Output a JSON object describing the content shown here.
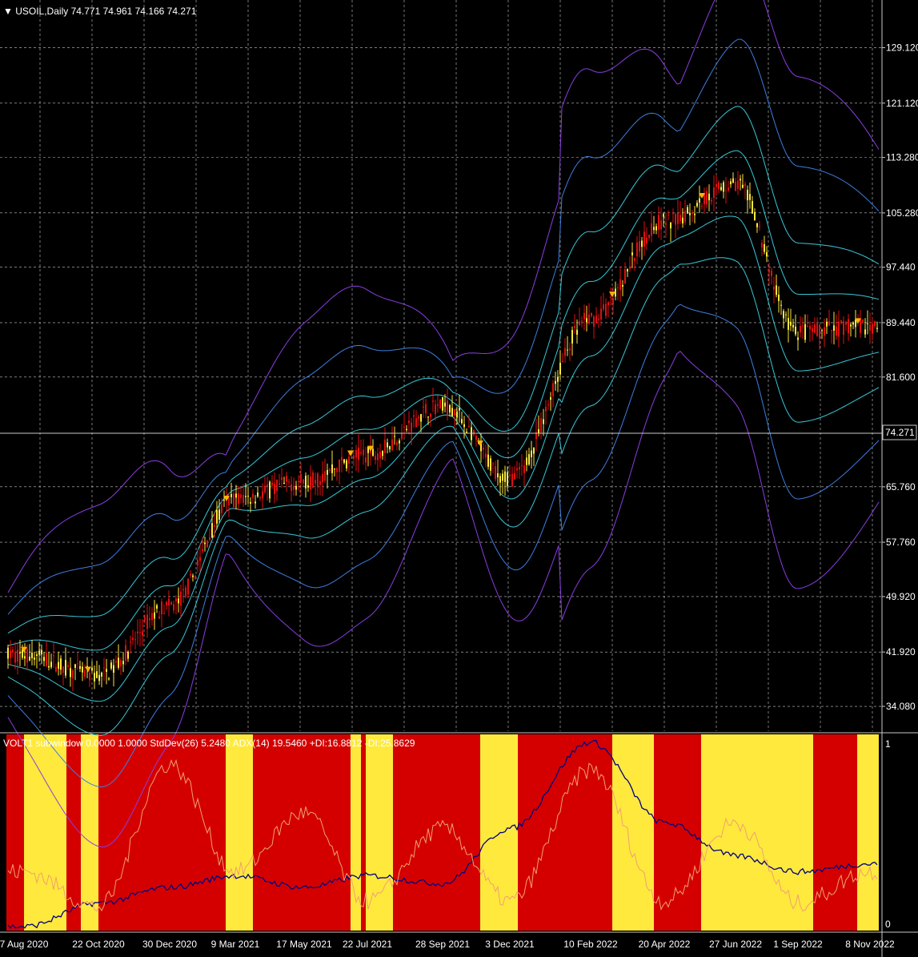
{
  "header": {
    "symbol_line": "▼ USOIL,Daily  74.771 74.961 74.166 74.271",
    "subwindow_line": "VOLT1 subwindow 0.0000 1.0000  StdDev(26) 5.2480  ADX(14) 19.5460 +DI:16.8812 -DI:25.8629"
  },
  "price_axis": {
    "ticks": [
      "129.120",
      "121.120",
      "113.280",
      "105.280",
      "97.440",
      "89.440",
      "81.600",
      "65.760",
      "57.760",
      "49.920",
      "41.920",
      "34.080"
    ],
    "tick_values": [
      129.12,
      121.12,
      113.28,
      105.28,
      97.44,
      89.44,
      81.6,
      65.76,
      57.76,
      49.92,
      41.92,
      34.08
    ],
    "current_price_label": "74.271",
    "current_price": 74.271
  },
  "sub_axis": {
    "top_label": "1",
    "bottom_label": "0"
  },
  "time_axis": {
    "labels": [
      "7 Aug 2020",
      "22 Oct 2020",
      "30 Dec 2020",
      "9 Mar 2021",
      "17 May 2021",
      "22 Jul 2021",
      "28 Sep 2021",
      "3 Dec 2021",
      "10 Feb 2022",
      "20 Apr 2022",
      "27 Jun 2022",
      "1 Sep 2022",
      "8 Nov 2022"
    ]
  },
  "colors": {
    "background": "#000000",
    "grid": "#c8c8c8",
    "up_candles": "#ffe93d",
    "down_candles": "#e01010",
    "band_inner": "#38c8d8",
    "band_mid": "#3e7ee0",
    "band_outer": "#8a3ee0",
    "regime_red": "#d40000",
    "regime_yellow": "#ffe93d",
    "stddev_line": "#000080",
    "adx_line": "#f0a070"
  },
  "chart_data": [
    {
      "type": "line",
      "title": "USOIL,Daily",
      "ylim": [
        30.5,
        136
      ],
      "series": [
        {
          "name": "USOIL",
          "x": [
            "7 Aug 2020",
            "22 Oct 2020",
            "30 Dec 2020",
            "9 Mar 2021",
            "17 May 2021",
            "22 Jul 2021",
            "28 Sep 2021",
            "3 Dec 2021",
            "10 Feb 2022",
            "20 Apr 2022",
            "27 Jun 2022",
            "1 Sep 2022",
            "8 Nov 2022"
          ],
          "values": [
            41.5,
            38.5,
            48.5,
            64.0,
            66.5,
            70.5,
            77.5,
            67.0,
            90.0,
            104.0,
            109.5,
            88.0,
            89.0
          ]
        }
      ]
    },
    {
      "type": "area",
      "title": "VOLT1 subwindow",
      "ylim": [
        0,
        1
      ],
      "series": [
        {
          "name": "StdDev(26)",
          "x": [
            "7 Aug 2020",
            "22 Oct 2020",
            "30 Dec 2020",
            "9 Mar 2021",
            "17 May 2021",
            "22 Jul 2021",
            "28 Sep 2021",
            "3 Dec 2021",
            "10 Feb 2022",
            "20 Apr 2022",
            "27 Jun 2022",
            "1 Sep 2022",
            "8 Nov 2022"
          ],
          "values": [
            0.02,
            0.14,
            0.22,
            0.28,
            0.22,
            0.28,
            0.24,
            0.52,
            0.96,
            0.55,
            0.38,
            0.3,
            0.34
          ]
        },
        {
          "name": "ADX(14)",
          "x": [
            "7 Aug 2020",
            "22 Oct 2020",
            "30 Dec 2020",
            "9 Mar 2021",
            "17 May 2021",
            "22 Jul 2021",
            "28 Sep 2021",
            "3 Dec 2021",
            "10 Feb 2022",
            "20 Apr 2022",
            "27 Jun 2022",
            "1 Sep 2022",
            "8 Nov 2022"
          ],
          "values": [
            0.3,
            0.12,
            0.85,
            0.3,
            0.6,
            0.15,
            0.52,
            0.15,
            0.82,
            0.15,
            0.55,
            0.14,
            0.3
          ]
        }
      ]
    }
  ]
}
